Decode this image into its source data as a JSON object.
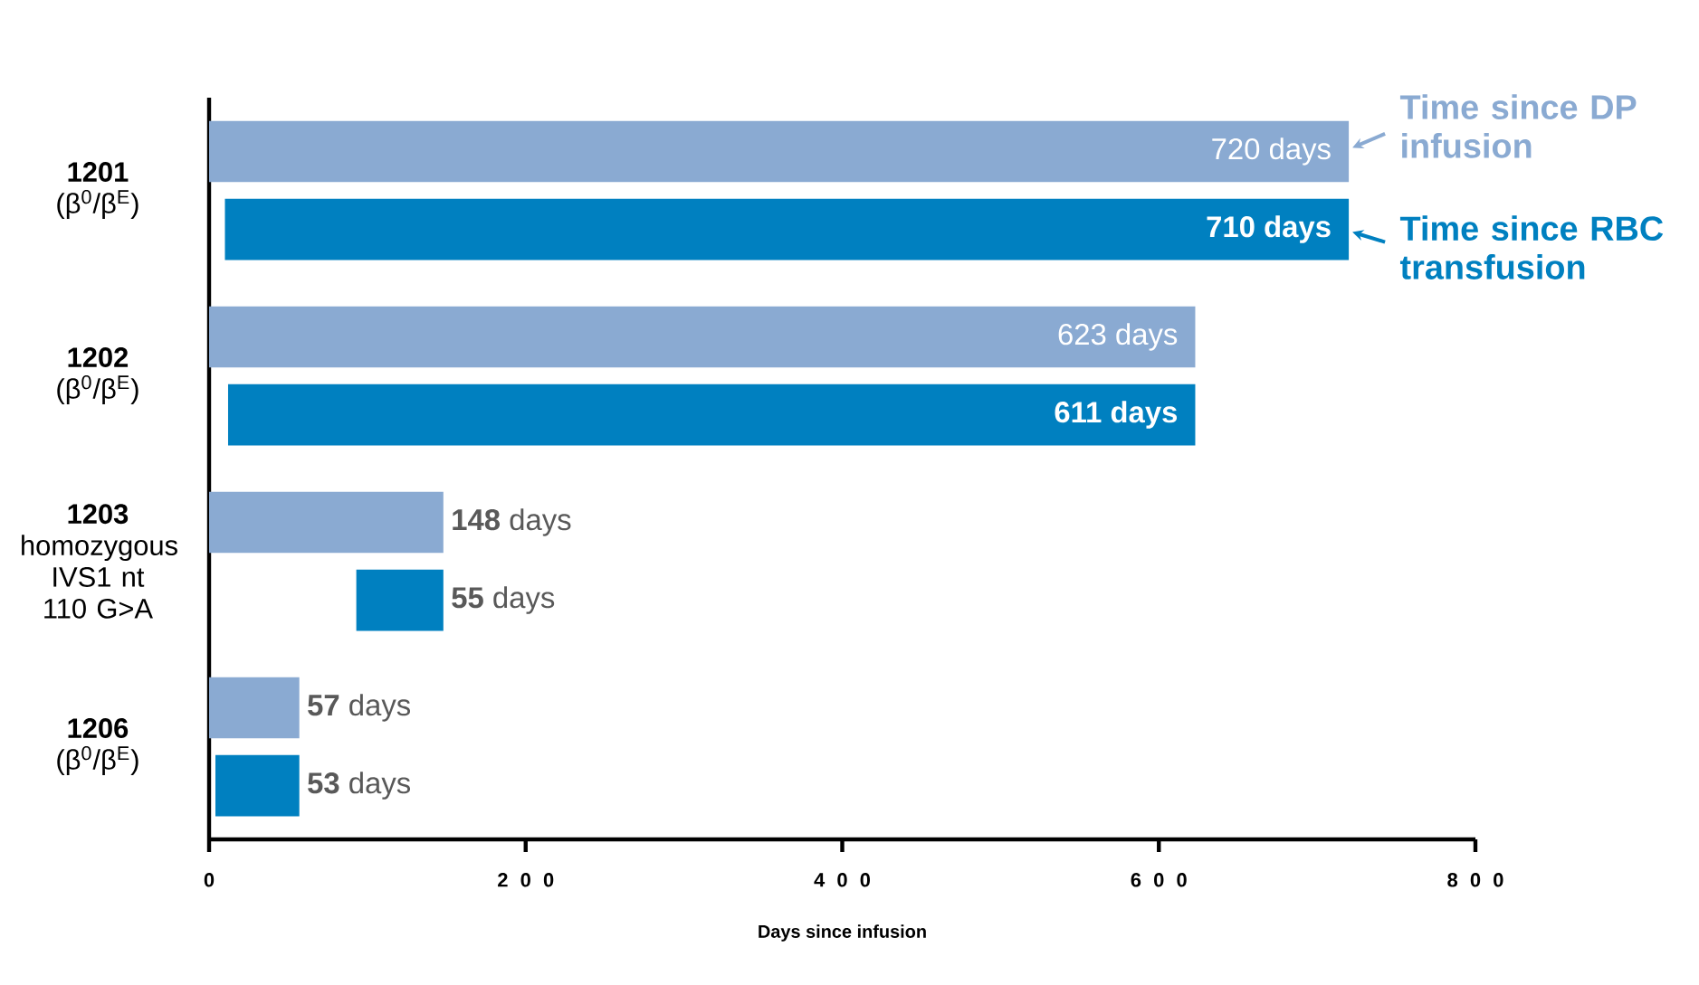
{
  "chart_data": {
    "type": "bar",
    "orientation": "horizontal",
    "xlabel": "Days since infusion",
    "categories": [
      "**1201** (β$^{0}$/β$^{E}$)",
      "**1202** (β$^{0}$/β$^{E}$)",
      "**1203** homozygous IVS1 nt 110 G>A",
      "**1206** (β$^{0}$/β$^{E}$)"
    ],
    "series": [
      {
        "name": "Time since DP infusion",
        "color": "#8aaad2",
        "values": [
          720,
          623,
          148,
          57
        ],
        "value_labels": [
          "720 days",
          "623 days",
          "**148** days",
          "**57** days"
        ]
      },
      {
        "name": "Time since RBC transfusion",
        "color": "#0080c0",
        "values": [
          710,
          611,
          55,
          53
        ],
        "base": [
          10,
          12,
          93,
          4
        ],
        "value_labels": [
          "710 days",
          "611 days",
          "**55** days",
          "**53** days"
        ]
      }
    ],
    "xlim": [
      0,
      800
    ],
    "xticks": [
      0,
      200,
      400,
      600,
      800
    ],
    "grid": false,
    "legend": "top right"
  }
}
